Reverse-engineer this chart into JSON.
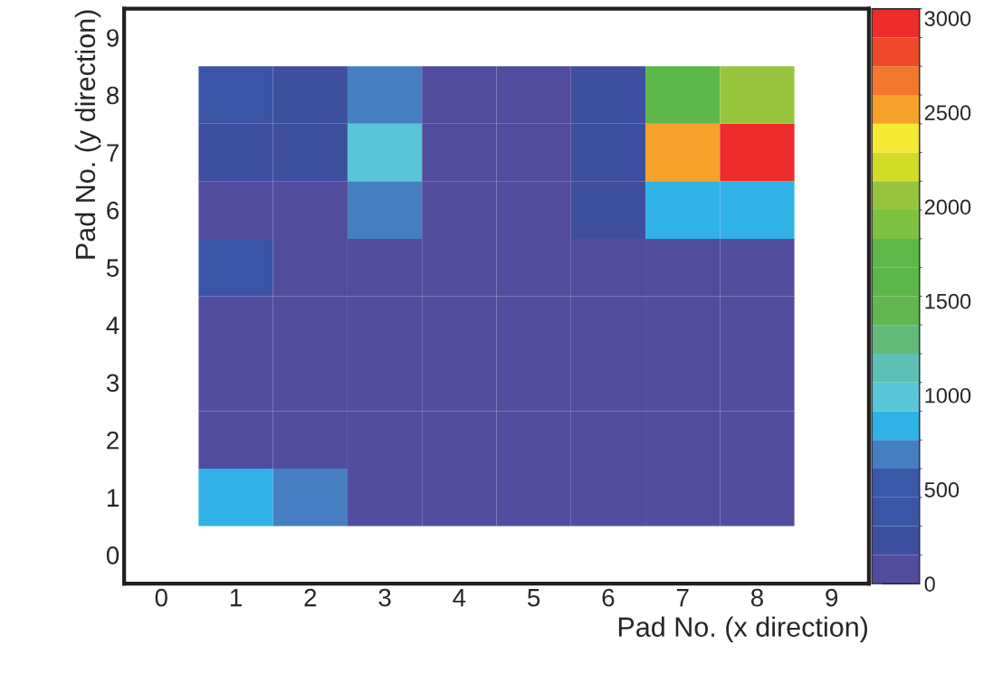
{
  "chart_data": {
    "type": "heatmap",
    "xlabel": "Pad No. (x direction)",
    "ylabel": "Pad No. (y direction)",
    "categories": [
      "0",
      "1",
      "2",
      "3",
      "4",
      "5",
      "6",
      "7",
      "8",
      "9"
    ],
    "y_categories": [
      "9",
      "8",
      "7",
      "6",
      "5",
      "4",
      "3",
      "2",
      "1",
      "0"
    ],
    "cells": [
      [
        null,
        null,
        null,
        null,
        null,
        null,
        null,
        null,
        null,
        null
      ],
      [
        null,
        400,
        230,
        690,
        50,
        50,
        230,
        1600,
        2060,
        null
      ],
      [
        null,
        230,
        230,
        990,
        50,
        50,
        230,
        2520,
        3000,
        null
      ],
      [
        null,
        50,
        50,
        690,
        50,
        50,
        230,
        840,
        840,
        null
      ],
      [
        null,
        400,
        50,
        50,
        50,
        50,
        50,
        50,
        50,
        null
      ],
      [
        null,
        50,
        50,
        50,
        50,
        50,
        50,
        50,
        50,
        null
      ],
      [
        null,
        50,
        50,
        50,
        50,
        50,
        50,
        50,
        50,
        null
      ],
      [
        null,
        50,
        50,
        50,
        50,
        50,
        50,
        50,
        50,
        null
      ],
      [
        null,
        840,
        690,
        50,
        50,
        50,
        50,
        50,
        50,
        null
      ],
      [
        null,
        null,
        null,
        null,
        null,
        null,
        null,
        null,
        null,
        null
      ]
    ],
    "colors": [
      "#524c9f",
      "#3f4f9f",
      "#3a55a5",
      "#3958a7",
      "#457fc2",
      "#30b2e6",
      "#59c6d8",
      "#5cc0b5",
      "#62bb7a",
      "#62b64f",
      "#5bb848",
      "#5db848",
      "#7dc142",
      "#97c43d",
      "#d2dc27",
      "#f4e933",
      "#f6a12a",
      "#f2782e",
      "#ee4a2a",
      "#ee2c2c"
    ],
    "clim": [
      0,
      3050
    ],
    "cticks": [
      0,
      500,
      1000,
      1500,
      2000,
      2500,
      3000
    ]
  }
}
